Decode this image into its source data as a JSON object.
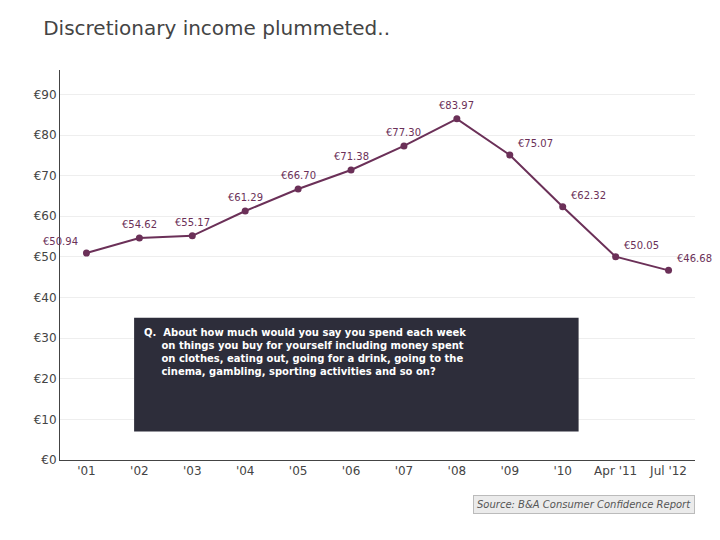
{
  "chart_data": {
    "type": "line",
    "title": "Discretionary income plummeted..",
    "categories": [
      "'01",
      "'02",
      "'03",
      "'04",
      "'05",
      "'06",
      "'07",
      "'08",
      "'09",
      "'10",
      "Apr '11",
      "Jul '12"
    ],
    "values": [
      50.94,
      54.62,
      55.17,
      61.29,
      66.7,
      71.38,
      77.3,
      83.97,
      75.07,
      62.32,
      50.05,
      46.68
    ],
    "value_labels": [
      "€50.94",
      "€54.62",
      "€55.17",
      "€61.29",
      "€66.70",
      "€71.38",
      "€77.30",
      "€83.97",
      "€75.07",
      "€62.32",
      "€50.05",
      "€46.68"
    ],
    "data_labels": true,
    "color": "#6b3058",
    "marker": "circle",
    "line_style": "solid",
    "ylim": [
      0,
      96
    ],
    "yticks": [
      {
        "value": 0,
        "label": "€0"
      },
      {
        "value": 10,
        "label": "€10"
      },
      {
        "value": 20,
        "label": "€20"
      },
      {
        "value": 30,
        "label": "€30"
      },
      {
        "value": 40,
        "label": "€40"
      },
      {
        "value": 50,
        "label": "€50"
      },
      {
        "value": 60,
        "label": "€60"
      },
      {
        "value": 70,
        "label": "€70"
      },
      {
        "value": 80,
        "label": "€80"
      },
      {
        "value": 90,
        "label": "€90"
      }
    ],
    "grid": true,
    "annotations": [
      "Q.  About how much would you say you spend each week",
      "     on things you buy for yourself including money spent",
      "     on clothes, eating out, going for a drink, going to the",
      "     cinema, gambling, sporting activities and so on?",
      "Source: B&A Consumer Confidence Report"
    ]
  }
}
